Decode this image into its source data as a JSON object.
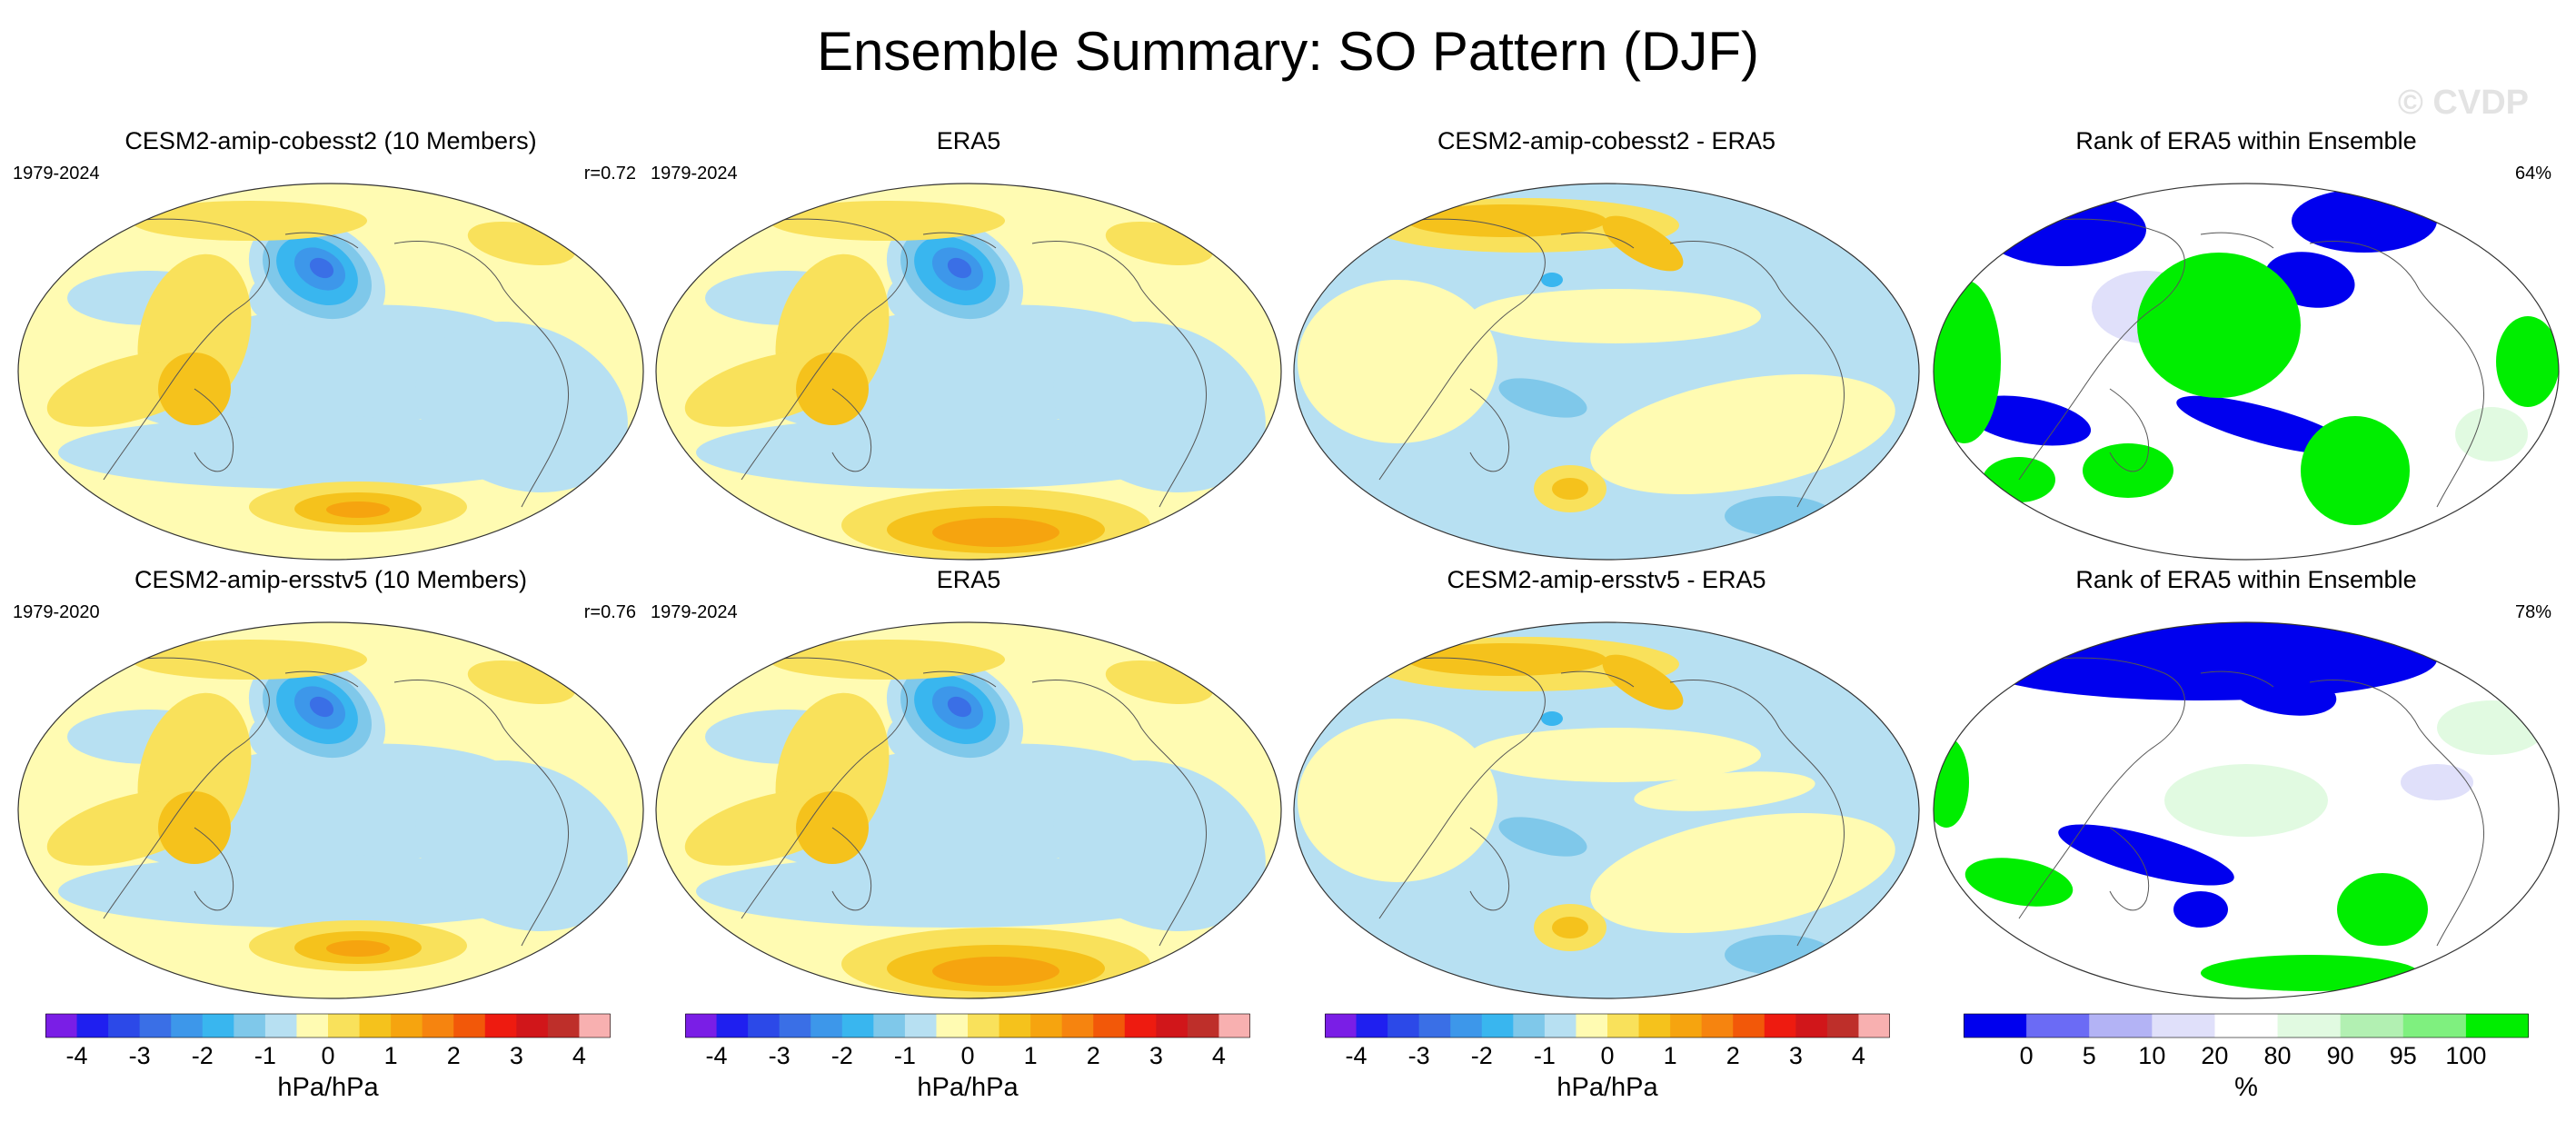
{
  "figure": {
    "title": "Ensemble Summary: SO Pattern (DJF)",
    "watermark": "© CVDP"
  },
  "chart_data": [
    {
      "type": "map",
      "panel": "top-1",
      "title": "CESM2-amip-cobesst2 (10 Members)",
      "period": "1979-2024",
      "stat": "r=0.72",
      "colorbar": "diverging"
    },
    {
      "type": "map",
      "panel": "top-2",
      "title": "ERA5",
      "period": "1979-2024",
      "stat": "",
      "colorbar": "diverging"
    },
    {
      "type": "map",
      "panel": "top-3",
      "title": "CESM2-amip-cobesst2 - ERA5",
      "period": "",
      "stat": "",
      "colorbar": "diverging"
    },
    {
      "type": "map",
      "panel": "top-4",
      "title": "Rank of ERA5 within Ensemble",
      "period": "",
      "stat": "64%",
      "colorbar": "rank"
    },
    {
      "type": "map",
      "panel": "bottom-1",
      "title": "CESM2-amip-ersstv5 (10 Members)",
      "period": "1979-2020",
      "stat": "r=0.76",
      "colorbar": "diverging"
    },
    {
      "type": "map",
      "panel": "bottom-2",
      "title": "ERA5",
      "period": "1979-2024",
      "stat": "",
      "colorbar": "diverging"
    },
    {
      "type": "map",
      "panel": "bottom-3",
      "title": "CESM2-amip-ersstv5 - ERA5",
      "period": "",
      "stat": "",
      "colorbar": "diverging"
    },
    {
      "type": "map",
      "panel": "bottom-4",
      "title": "Rank of ERA5 within Ensemble",
      "period": "",
      "stat": "78%",
      "colorbar": "rank"
    }
  ],
  "colorbars": {
    "diverging": {
      "label": "hPa/hPa",
      "colors": [
        "#7a1ee6",
        "#1f1ff0",
        "#2c49e8",
        "#3a6fe6",
        "#3d97ea",
        "#39b6ef",
        "#7fc8ea",
        "#b7e0f2",
        "#fffbb2",
        "#f9e15b",
        "#f5c21c",
        "#f6a40f",
        "#f6840f",
        "#f25809",
        "#ee1b10",
        "#d1161a",
        "#be2f2a",
        "#f8b0b0"
      ],
      "ticks": [
        "-4",
        "-3",
        "-2",
        "-1",
        "0",
        "1",
        "2",
        "3",
        "4"
      ],
      "tick_boundaries": [
        1,
        3,
        5,
        7,
        9,
        11,
        13,
        15,
        17
      ]
    },
    "rank": {
      "label": "%",
      "colors": [
        "#0000ee",
        "#6b6bf5",
        "#b3b3f5",
        "#e0e0fa",
        "#ffffff",
        "#e1fae1",
        "#b2f0b2",
        "#7ff07f",
        "#00ee00"
      ],
      "ticks": [
        "0",
        "5",
        "10",
        "20",
        "80",
        "90",
        "95",
        "100"
      ],
      "tick_boundaries": [
        1,
        2,
        3,
        4,
        5,
        6,
        7,
        8
      ]
    }
  }
}
